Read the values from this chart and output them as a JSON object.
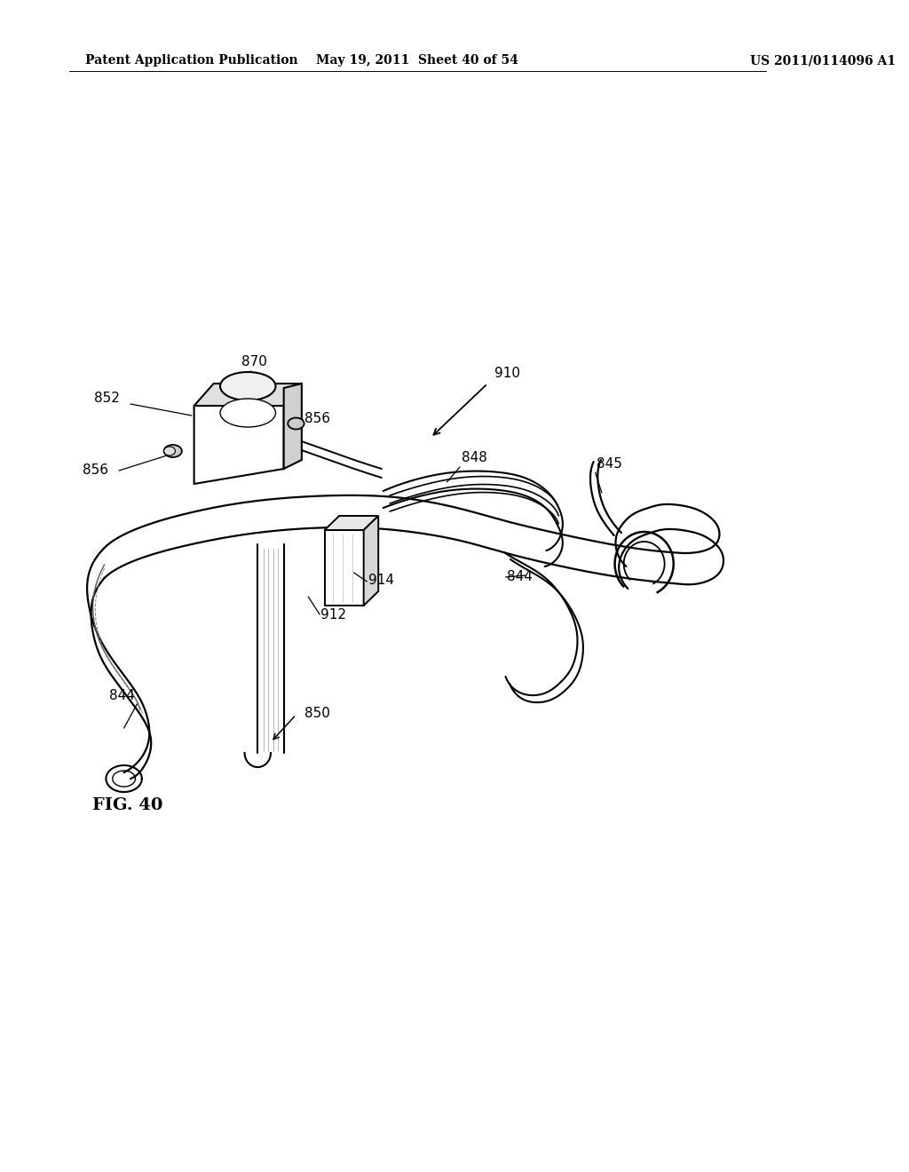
{
  "background_color": "#ffffff",
  "header_left": "Patent Application Publication",
  "header_mid": "May 19, 2011  Sheet 40 of 54",
  "header_right": "US 2011/0114096 A1",
  "fig_label": "FIG. 40",
  "text_color": "#000000",
  "line_color": "#000000",
  "line_width": 1.2
}
